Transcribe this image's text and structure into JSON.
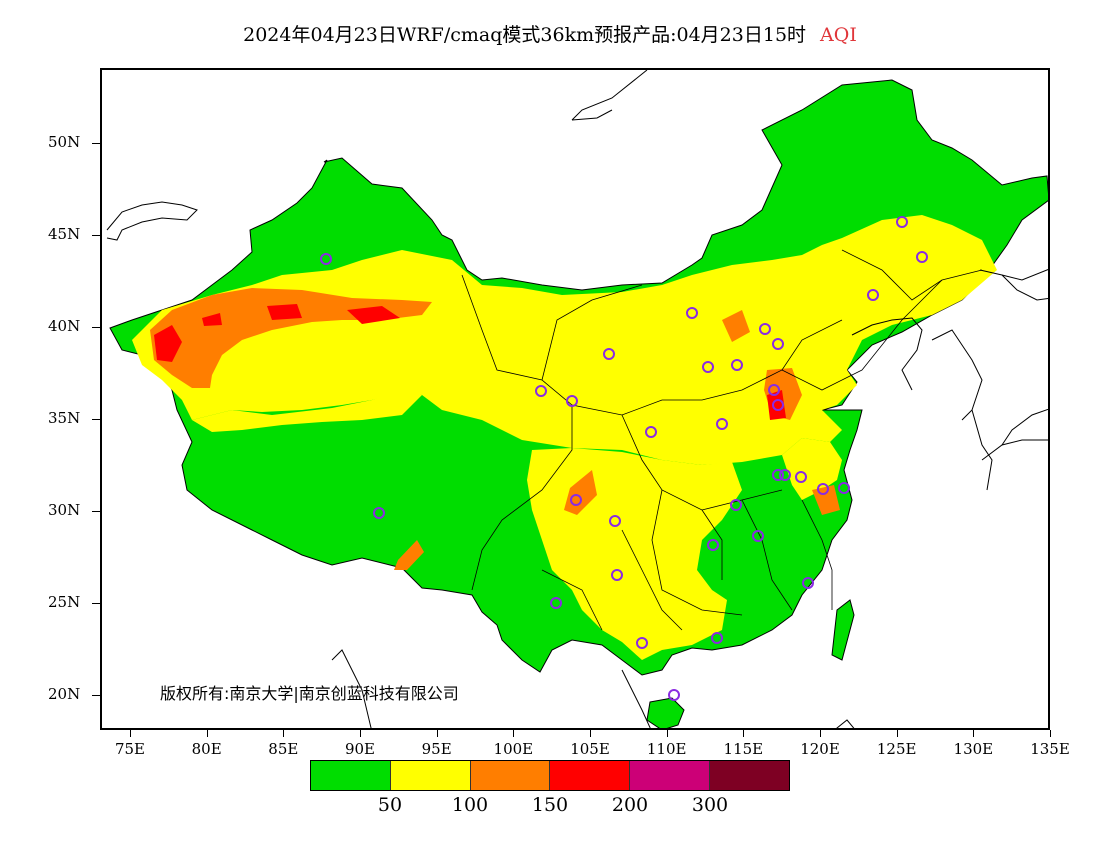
{
  "title": {
    "main": "2024年04月23日WRF/cmaq模式36km预报产品:04月23日15时",
    "product": "AQI"
  },
  "axes": {
    "lat_labels": [
      "50N",
      "45N",
      "40N",
      "35N",
      "30N",
      "25N",
      "20N"
    ],
    "lon_labels": [
      "75E",
      "80E",
      "85E",
      "90E",
      "95E",
      "100E",
      "105E",
      "110E",
      "115E",
      "120E",
      "125E",
      "130E",
      "135E"
    ],
    "lon_range": [
      73,
      135
    ],
    "lat_range": [
      18,
      53
    ]
  },
  "copyright": "版权所有:南京大学|南京创蓝科技有限公司",
  "legend": {
    "colors": [
      "#00dd00",
      "#ffff00",
      "#ff7e00",
      "#ff0000",
      "#cc0077",
      "#7e0023"
    ],
    "labels": [
      "50",
      "100",
      "150",
      "200",
      "300"
    ]
  },
  "map_colors": {
    "ocean": "#ffffff",
    "good": "#00dd00",
    "moderate": "#ffff00",
    "sensitive": "#ff7e00",
    "unhealthy": "#ff0000",
    "circle": "#8a2be2",
    "border": "#000000"
  }
}
